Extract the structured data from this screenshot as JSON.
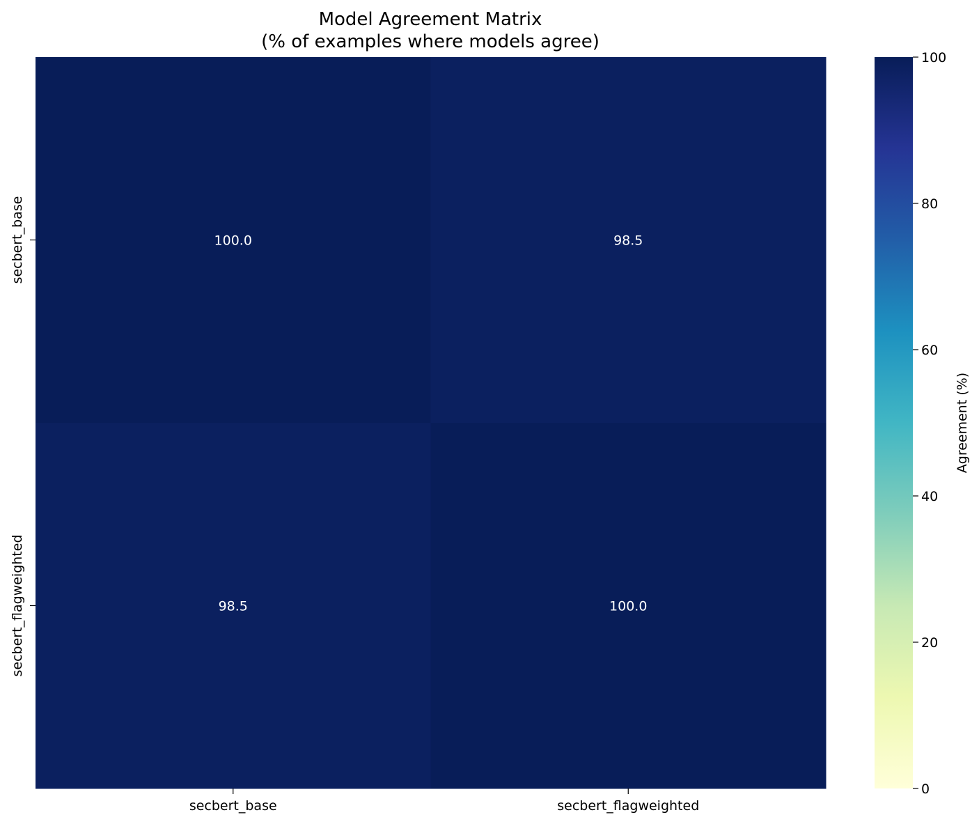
{
  "chart_data": {
    "type": "heatmap",
    "title_lines": [
      "Model Agreement Matrix",
      "(% of examples where models agree)"
    ],
    "x_categories": [
      "secbert_base",
      "secbert_flagweighted"
    ],
    "y_categories": [
      "secbert_base",
      "secbert_flagweighted"
    ],
    "values": [
      [
        100.0,
        98.5
      ],
      [
        98.5,
        100.0
      ]
    ],
    "value_labels": [
      [
        "100.0",
        "98.5"
      ],
      [
        "98.5",
        "100.0"
      ]
    ],
    "colorbar": {
      "label": "Agreement (%)",
      "range": [
        0,
        100
      ],
      "ticks": [
        "0",
        "20",
        "40",
        "60",
        "80",
        "100"
      ],
      "colormap": [
        "#ffffd9",
        "#edf8b1",
        "#c7e9b4",
        "#7fcdbb",
        "#41b6c4",
        "#1d91c0",
        "#225ea8",
        "#253494",
        "#081d58"
      ]
    },
    "annotation_color": "#ffffff",
    "grid": false
  }
}
